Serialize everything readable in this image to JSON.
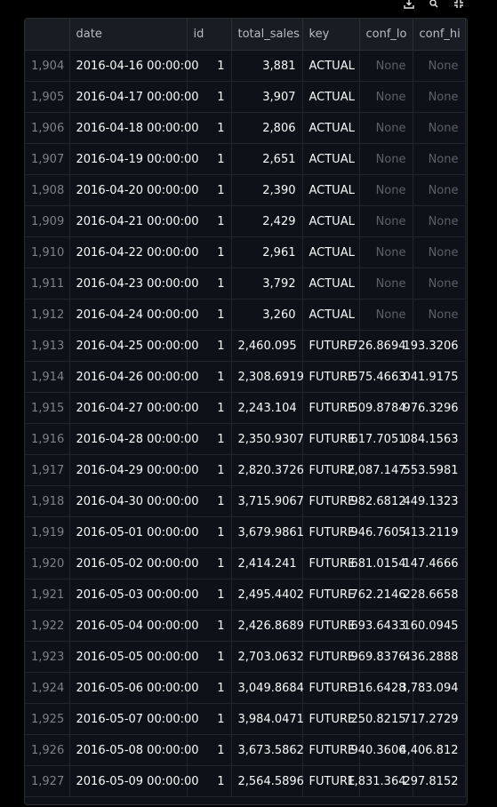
{
  "columns": [
    "",
    "date",
    "id",
    "total_sales",
    "key",
    "conf_lo",
    "conf_hi"
  ],
  "rows": [
    [
      "1,904",
      "2016-04-16 00:00:00",
      "1",
      "3,881",
      "ACTUAL",
      "None",
      "None"
    ],
    [
      "1,905",
      "2016-04-17 00:00:00",
      "1",
      "3,907",
      "ACTUAL",
      "None",
      "None"
    ],
    [
      "1,906",
      "2016-04-18 00:00:00",
      "1",
      "2,806",
      "ACTUAL",
      "None",
      "None"
    ],
    [
      "1,907",
      "2016-04-19 00:00:00",
      "1",
      "2,651",
      "ACTUAL",
      "None",
      "None"
    ],
    [
      "1,908",
      "2016-04-20 00:00:00",
      "1",
      "2,390",
      "ACTUAL",
      "None",
      "None"
    ],
    [
      "1,909",
      "2016-04-21 00:00:00",
      "1",
      "2,429",
      "ACTUAL",
      "None",
      "None"
    ],
    [
      "1,910",
      "2016-04-22 00:00:00",
      "1",
      "2,961",
      "ACTUAL",
      "None",
      "None"
    ],
    [
      "1,911",
      "2016-04-23 00:00:00",
      "1",
      "3,792",
      "ACTUAL",
      "None",
      "None"
    ],
    [
      "1,912",
      "2016-04-24 00:00:00",
      "1",
      "3,260",
      "ACTUAL",
      "None",
      "None"
    ],
    [
      "1,913",
      "2016-04-25 00:00:00",
      "1",
      "2,460.095",
      "FUTURE",
      "726.8694",
      "193.3206"
    ],
    [
      "1,914",
      "2016-04-26 00:00:00",
      "1",
      "2,308.6919",
      "FUTURE",
      "575.4663",
      "041.9175"
    ],
    [
      "1,915",
      "2016-04-27 00:00:00",
      "1",
      "2,243.104",
      "FUTURE",
      "509.8784",
      "976.3296"
    ],
    [
      "1,916",
      "2016-04-28 00:00:00",
      "1",
      "2,350.9307",
      "FUTURE",
      "617.7051",
      "084.1563"
    ],
    [
      "1,917",
      "2016-04-29 00:00:00",
      "1",
      "2,820.3726",
      "FUTURE",
      "2,087.147",
      "553.5981"
    ],
    [
      "1,918",
      "2016-04-30 00:00:00",
      "1",
      "3,715.9067",
      "FUTURE",
      "982.6812",
      "449.1323"
    ],
    [
      "1,919",
      "2016-05-01 00:00:00",
      "1",
      "3,679.9861",
      "FUTURE",
      "946.7605",
      "413.2119"
    ],
    [
      "1,920",
      "2016-05-02 00:00:00",
      "1",
      "2,414.241",
      "FUTURE",
      "681.0154",
      "147.4666"
    ],
    [
      "1,921",
      "2016-05-03 00:00:00",
      "1",
      "2,495.4402",
      "FUTURE",
      "762.2146",
      "228.6658"
    ],
    [
      "1,922",
      "2016-05-04 00:00:00",
      "1",
      "2,426.8689",
      "FUTURE",
      "693.6433",
      "160.0945"
    ],
    [
      "1,923",
      "2016-05-05 00:00:00",
      "1",
      "2,703.0632",
      "FUTURE",
      "969.8376",
      "436.2888"
    ],
    [
      "1,924",
      "2016-05-06 00:00:00",
      "1",
      "3,049.8684",
      "FUTURE",
      "316.6428",
      "3,783.094"
    ],
    [
      "1,925",
      "2016-05-07 00:00:00",
      "1",
      "3,984.0471",
      "FUTURE",
      "250.8215",
      "717.2729"
    ],
    [
      "1,926",
      "2016-05-08 00:00:00",
      "1",
      "3,673.5862",
      "FUTURE",
      "940.3606",
      "4,406.812"
    ],
    [
      "1,927",
      "2016-05-09 00:00:00",
      "1",
      "2,564.5896",
      "FUTURE",
      "1,831.364",
      "297.8152"
    ]
  ],
  "toolbar": {
    "icons": [
      "download-icon",
      "search-icon",
      "fullscreen-icon"
    ]
  },
  "colors": {
    "background": "#0e1117",
    "header": "#1a1c24",
    "text": "#fafafa",
    "muted": "#7d818a",
    "none": "#5c6068"
  }
}
